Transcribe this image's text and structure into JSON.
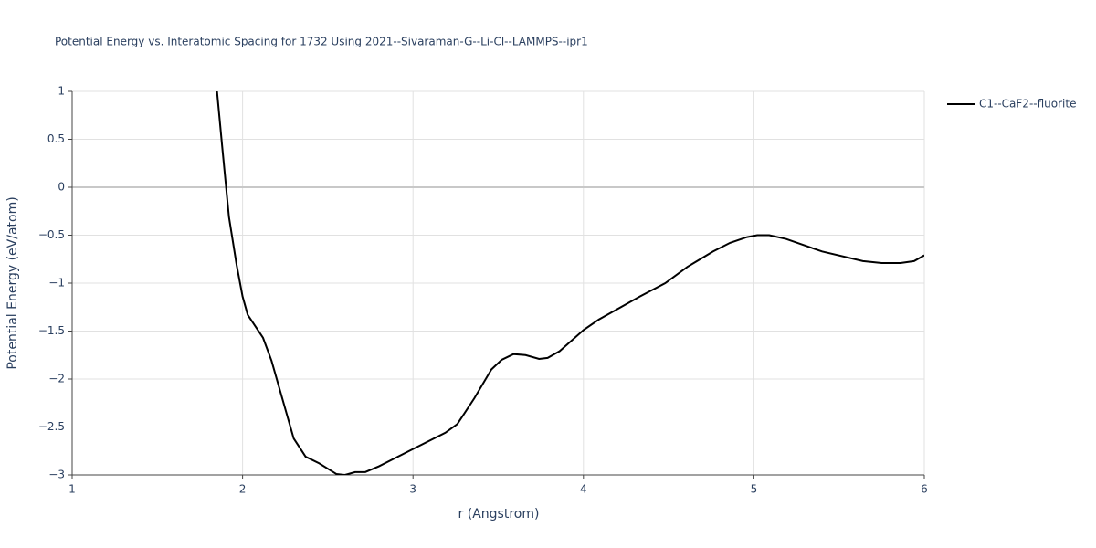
{
  "chart_data": {
    "type": "line",
    "title": "Potential Energy vs. Interatomic Spacing for 1732 Using 2021--Sivaraman-G--Li-Cl--LAMMPS--ipr1",
    "x_label": "r (Angstrom)",
    "y_label": "Potential Energy (eV/atom)",
    "xlim": [
      1,
      6
    ],
    "xticks": [
      1,
      2,
      3,
      4,
      5,
      6
    ],
    "ylim": [
      -3,
      1
    ],
    "yticks": [
      {
        "value": -3,
        "label": "−3"
      },
      {
        "value": -2.5,
        "label": "−2.5"
      },
      {
        "value": -2,
        "label": "−2"
      },
      {
        "value": -1.5,
        "label": "−1.5"
      },
      {
        "value": -1,
        "label": "−1"
      },
      {
        "value": -0.5,
        "label": "−0.5"
      },
      0,
      0.5,
      1
    ],
    "grid": true,
    "legend_position": "top-right",
    "series": [
      {
        "name": "C1--CaF2--fluorite",
        "color": "#000000",
        "x": [
          1.85,
          1.88,
          1.92,
          1.965,
          2.0,
          2.03,
          2.12,
          2.17,
          2.3,
          2.37,
          2.45,
          2.55,
          2.6,
          2.66,
          2.72,
          2.8,
          3.0,
          3.19,
          3.26,
          3.36,
          3.46,
          3.52,
          3.59,
          3.66,
          3.74,
          3.79,
          3.86,
          4.0,
          4.09,
          4.33,
          4.48,
          4.61,
          4.76,
          4.86,
          4.96,
          5.02,
          5.09,
          5.19,
          5.4,
          5.64,
          5.75,
          5.86,
          5.94,
          6.0
        ],
        "values": [
          1.0,
          0.43,
          -0.31,
          -0.81,
          -1.14,
          -1.33,
          -1.57,
          -1.81,
          -2.62,
          -2.81,
          -2.88,
          -2.99,
          -3.0,
          -2.97,
          -2.97,
          -2.91,
          -2.73,
          -2.56,
          -2.47,
          -2.2,
          -1.9,
          -1.8,
          -1.74,
          -1.75,
          -1.79,
          -1.78,
          -1.71,
          -1.49,
          -1.38,
          -1.14,
          -1.0,
          -0.83,
          -0.67,
          -0.58,
          -0.52,
          -0.5,
          -0.5,
          -0.54,
          -0.67,
          -0.77,
          -0.79,
          -0.79,
          -0.77,
          -0.71
        ]
      }
    ]
  }
}
